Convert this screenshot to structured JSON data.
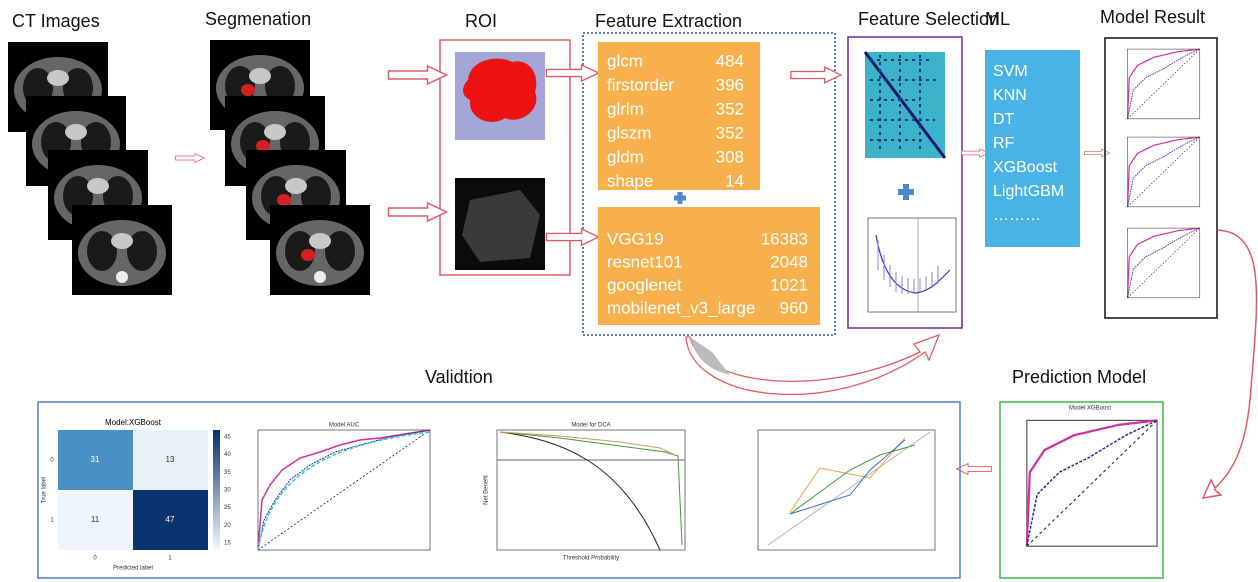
{
  "labels": {
    "ct_images": "CT Images",
    "segmentation": "Segmenation",
    "roi": "ROI",
    "feature_extraction": "Feature Extraction",
    "feature_selection": "Feature Selection",
    "ml": "ML",
    "model_result": "Model Result",
    "validation": "Validtion",
    "prediction_model": "Prediction Model"
  },
  "radiomics_features": [
    {
      "name": "glcm",
      "count": 484
    },
    {
      "name": "firstorder",
      "count": 396
    },
    {
      "name": "glrlm",
      "count": 352
    },
    {
      "name": "glszm",
      "count": 352
    },
    {
      "name": "gldm",
      "count": 308
    },
    {
      "name": "shape",
      "count": 14
    }
  ],
  "deep_features": [
    {
      "name": "VGG19",
      "count": 16383
    },
    {
      "name": "resnet101",
      "count": 2048
    },
    {
      "name": "googlenet",
      "count": 1021
    },
    {
      "name": "mobilenet_v3_large",
      "count": 960
    }
  ],
  "ml_models": [
    "SVM",
    "KNN",
    "DT",
    "RF",
    "XGBoost",
    "LightGBM",
    "………"
  ],
  "validation": {
    "confusion_matrix": {
      "title": "Model:XGBoost",
      "cells": [
        [
          31,
          13
        ],
        [
          11,
          47
        ]
      ],
      "x_label": "Predicted label",
      "y_label": "True label",
      "ticks": [
        0,
        1
      ],
      "colorbar_ticks": [
        45,
        40,
        35,
        30,
        25,
        20,
        15
      ]
    },
    "auc_title": "Model AUC",
    "dca_title": "Model for DCA",
    "dca_x_label": "Threshold Probability",
    "dca_y_label": "Net Benefit"
  },
  "prediction_model_title": "Model XGBoost"
}
